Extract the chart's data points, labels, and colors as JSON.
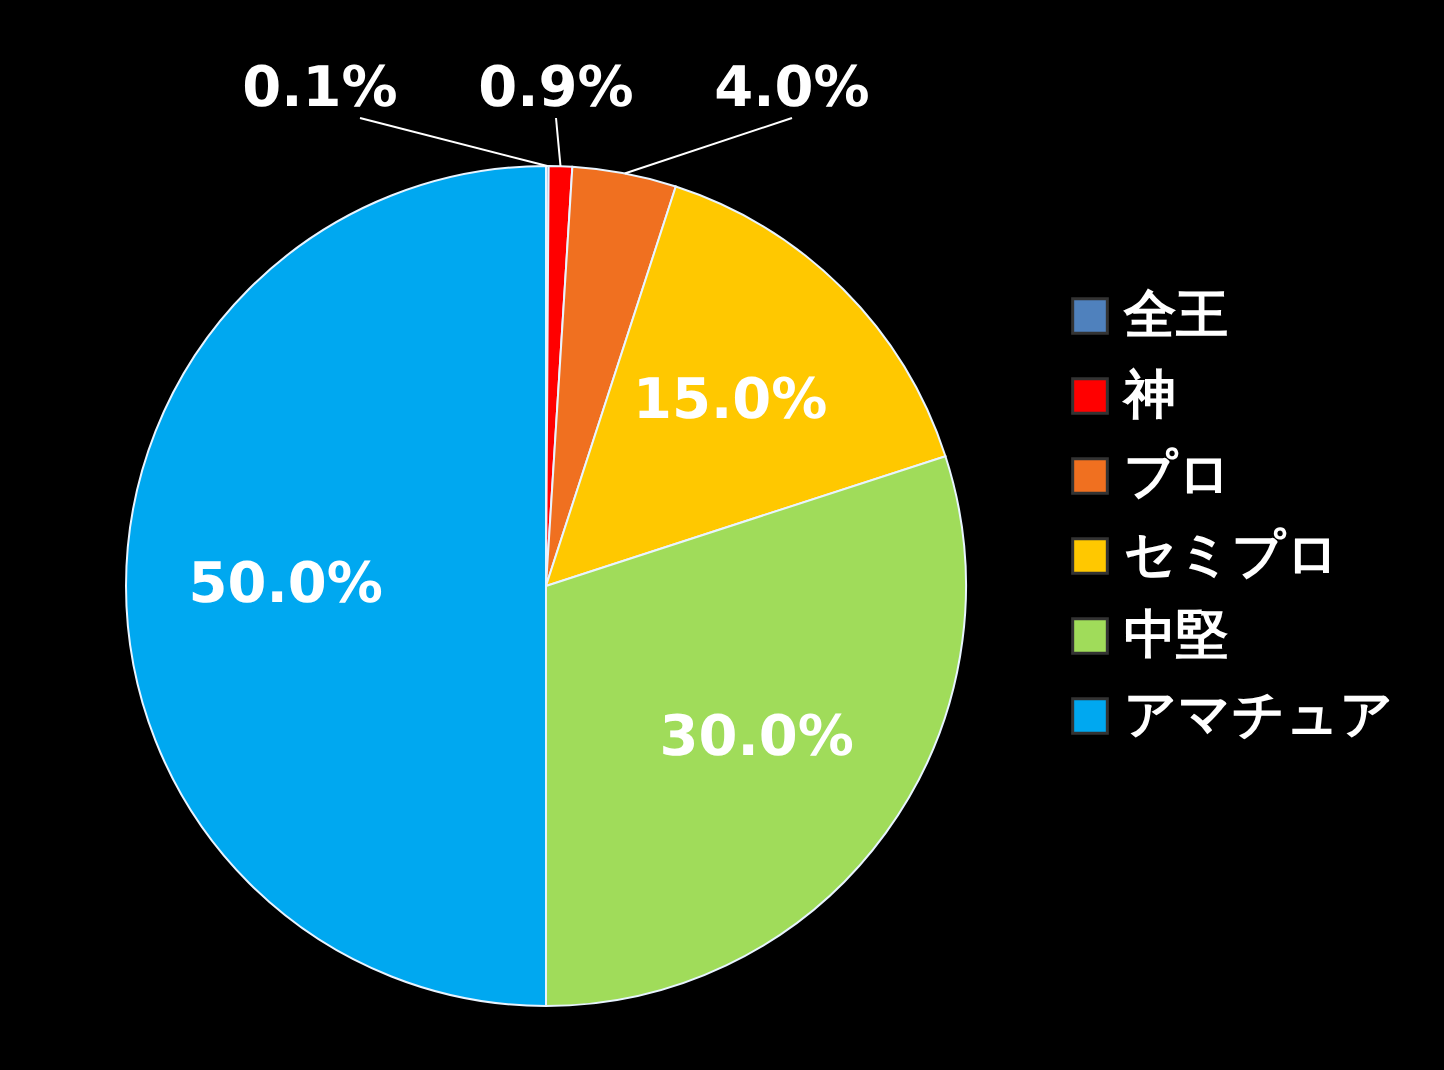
{
  "chart_data": {
    "type": "pie",
    "categories": [
      "全王",
      "神",
      "プロ",
      "セミプロ",
      "中堅",
      "アマチュア"
    ],
    "values": [
      0.1,
      0.9,
      4.0,
      15.0,
      30.0,
      50.0
    ],
    "colors": [
      "#4f81bd",
      "#ff0000",
      "#f07020",
      "#ffc800",
      "#a0dc5a",
      "#00a8f0"
    ],
    "value_labels": [
      "0.1%",
      "0.9%",
      "4.0%",
      "15.0%",
      "30.0%",
      "50.0%"
    ],
    "legend": "right"
  }
}
